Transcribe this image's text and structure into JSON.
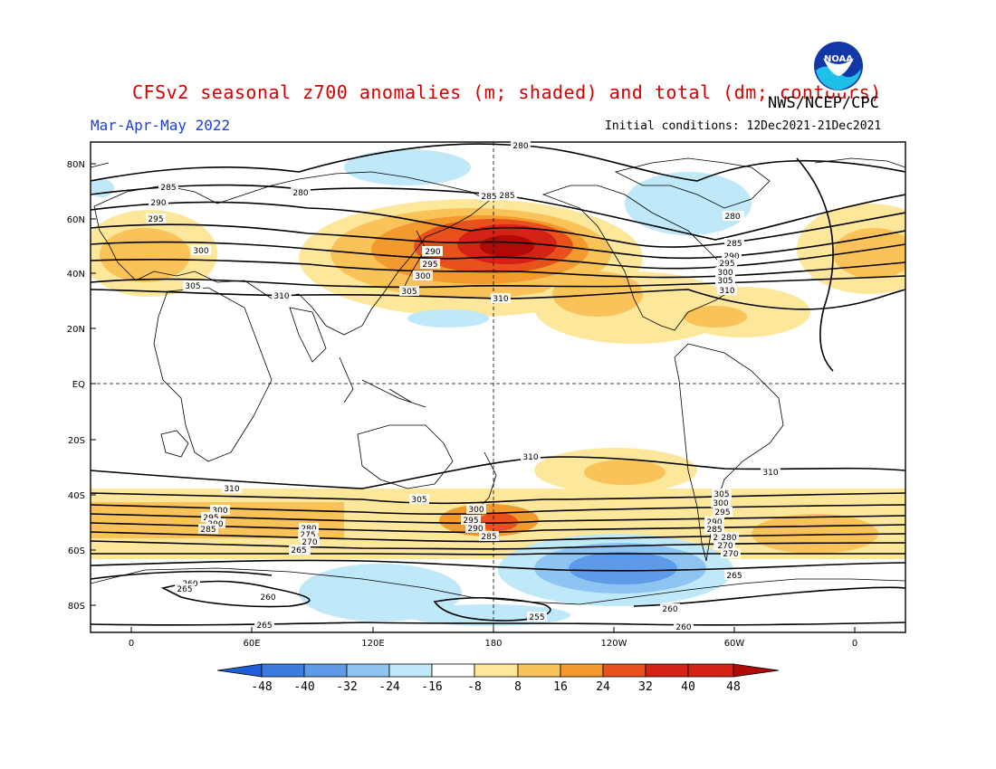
{
  "title": "CFSv2 seasonal z700 anomalies (m; shaded) and total (dm; contours)",
  "agency": "NWS/NCEP/CPC",
  "period": "Mar-Apr-May 2022",
  "initial_conditions": "Initial conditions: 12Dec2021-21Dec2021",
  "logo_text": "NOAA",
  "colors": {
    "title": "#d40000",
    "period": "#1c3fd8",
    "scale": [
      "#1e5fd6",
      "#3a7be0",
      "#5d9be8",
      "#8ec4f2",
      "#bfe8f8",
      "#ffffff",
      "#fde79a",
      "#f9c35a",
      "#f29a2e",
      "#e8511c",
      "#d42314",
      "#b00a08"
    ]
  },
  "map": {
    "lat_ticks": [
      "80N",
      "60N",
      "40N",
      "20N",
      "EQ",
      "20S",
      "40S",
      "60S",
      "80S"
    ],
    "lon_ticks": [
      "0",
      "60E",
      "120E",
      "180",
      "120W",
      "60W",
      "0"
    ]
  },
  "colorbar": {
    "ticks": [
      "-48",
      "-40",
      "-32",
      "-24",
      "-16",
      "-8",
      "8",
      "16",
      "24",
      "32",
      "40",
      "48"
    ]
  },
  "contour_labels": [
    {
      "text": "280"
    },
    {
      "text": "285"
    },
    {
      "text": "280"
    },
    {
      "text": "290"
    },
    {
      "text": "295"
    },
    {
      "text": "300"
    },
    {
      "text": "305"
    },
    {
      "text": "310"
    },
    {
      "text": "285"
    },
    {
      "text": "290"
    },
    {
      "text": "295"
    },
    {
      "text": "300"
    },
    {
      "text": "305"
    },
    {
      "text": "310"
    },
    {
      "text": "280"
    },
    {
      "text": "285"
    },
    {
      "text": "290"
    },
    {
      "text": "295"
    },
    {
      "text": "300"
    },
    {
      "text": "305"
    },
    {
      "text": "310"
    },
    {
      "text": "310"
    },
    {
      "text": "310"
    },
    {
      "text": "310"
    },
    {
      "text": "305"
    },
    {
      "text": "300"
    },
    {
      "text": "295"
    },
    {
      "text": "290"
    },
    {
      "text": "285"
    },
    {
      "text": "280"
    },
    {
      "text": "275"
    },
    {
      "text": "270"
    },
    {
      "text": "265"
    },
    {
      "text": "300"
    },
    {
      "text": "295"
    },
    {
      "text": "290"
    },
    {
      "text": "285"
    },
    {
      "text": "305"
    },
    {
      "text": "300"
    },
    {
      "text": "295"
    },
    {
      "text": "290"
    },
    {
      "text": "285"
    },
    {
      "text": "280"
    },
    {
      "text": "275"
    },
    {
      "text": "270"
    },
    {
      "text": "265"
    },
    {
      "text": "260"
    },
    {
      "text": "265"
    },
    {
      "text": "260"
    },
    {
      "text": "255"
    },
    {
      "text": "260"
    },
    {
      "text": "260"
    },
    {
      "text": "265"
    },
    {
      "text": "280"
    },
    {
      "text": "285"
    },
    {
      "text": "290"
    },
    {
      "text": "280"
    },
    {
      "text": "280"
    },
    {
      "text": "270"
    },
    {
      "text": "265"
    }
  ]
}
